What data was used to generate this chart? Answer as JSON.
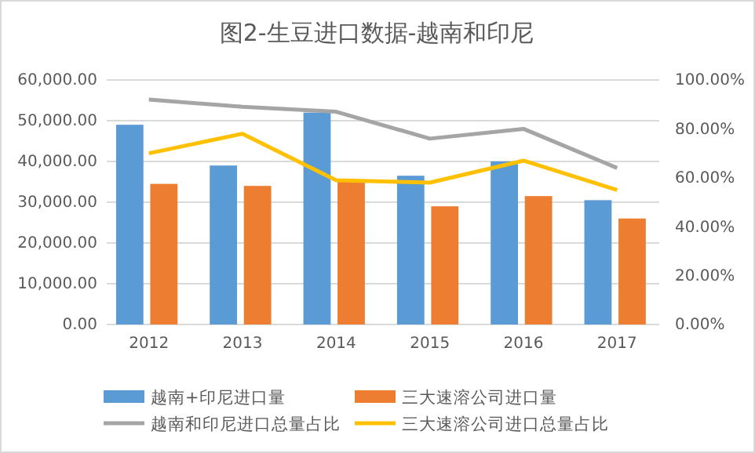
{
  "chart_data": {
    "type": "bar",
    "title": "图2-生豆进口数据-越南和印尼",
    "categories": [
      "2012",
      "2013",
      "2014",
      "2015",
      "2016",
      "2017"
    ],
    "series": [
      {
        "name": "越南+印尼进口量",
        "color": "#5b9bd5",
        "values": [
          49000,
          39000,
          52000,
          36500,
          40000,
          30500
        ]
      },
      {
        "name": "三大速溶公司进口量",
        "color": "#ed7d31",
        "values": [
          34500,
          34000,
          35000,
          29000,
          31500,
          26000
        ]
      },
      {
        "name": "越南和印尼进口总量占比",
        "color": "#a5a5a5",
        "type": "line",
        "axis": "y2",
        "values": [
          92,
          89,
          87,
          76,
          80,
          64
        ]
      },
      {
        "name": "三大速溶公司进口总量占比",
        "color": "#ffc000",
        "type": "line",
        "axis": "y2",
        "values": [
          70,
          78,
          59,
          58,
          67,
          55
        ]
      }
    ],
    "ylim": [
      0,
      60000
    ],
    "yticks": [
      {
        "value": 0,
        "label": "0.00"
      },
      {
        "value": 10000,
        "label": "10,000.00"
      },
      {
        "value": 20000,
        "label": "20,000.00"
      },
      {
        "value": 30000,
        "label": "30,000.00"
      },
      {
        "value": 40000,
        "label": "40,000.00"
      },
      {
        "value": 50000,
        "label": "50,000.00"
      },
      {
        "value": 60000,
        "label": "60,000.00"
      }
    ],
    "y2lim": [
      0,
      100
    ],
    "y2ticks": [
      {
        "value": 0,
        "label": "0.00%"
      },
      {
        "value": 20,
        "label": "20.00%"
      },
      {
        "value": 40,
        "label": "40.00%"
      },
      {
        "value": 60,
        "label": "60.00%"
      },
      {
        "value": 80,
        "label": "80.00%"
      },
      {
        "value": 100,
        "label": "100.00%"
      }
    ],
    "grid": "y",
    "legend": "bottom",
    "marker": "none"
  }
}
